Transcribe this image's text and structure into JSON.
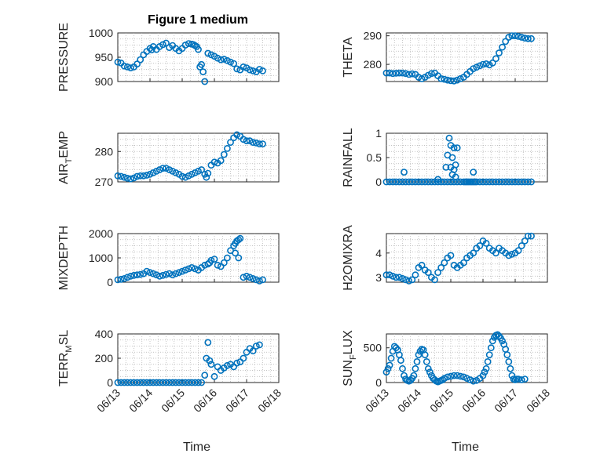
{
  "figure": {
    "title": "Figure 1 medium"
  },
  "chart_data": [
    {
      "type": "scatter",
      "title": "Figure 1 medium",
      "xlabel": "",
      "ylabel": "PRESSURE",
      "ylabel_parts": [
        "PRESSURE"
      ],
      "xlim": [
        0,
        5
      ],
      "ylim": [
        900,
        1000
      ],
      "yticks": [
        900,
        950,
        1000
      ],
      "xtick_labels": [],
      "grid": true,
      "marker": "circle",
      "color": "#0072BD",
      "x": [
        0.0,
        0.1,
        0.2,
        0.3,
        0.4,
        0.5,
        0.6,
        0.7,
        0.8,
        0.9,
        1.0,
        1.05,
        1.1,
        1.2,
        1.3,
        1.4,
        1.5,
        1.6,
        1.7,
        1.8,
        1.9,
        2.0,
        2.1,
        2.2,
        2.3,
        2.35,
        2.4,
        2.45,
        2.5,
        2.55,
        2.6,
        2.65,
        2.7,
        2.8,
        2.9,
        3.0,
        3.1,
        3.2,
        3.3,
        3.4,
        3.5,
        3.6,
        3.7,
        3.8,
        3.9,
        4.0,
        4.1,
        4.2,
        4.3,
        4.4,
        4.5
      ],
      "y": [
        940,
        938,
        932,
        930,
        928,
        930,
        936,
        945,
        955,
        962,
        968,
        965,
        972,
        966,
        972,
        976,
        979,
        970,
        974,
        968,
        963,
        968,
        975,
        978,
        977,
        976,
        974,
        972,
        966,
        930,
        935,
        920,
        900,
        958,
        955,
        952,
        948,
        945,
        946,
        943,
        940,
        937,
        926,
        924,
        930,
        928,
        924,
        922,
        920,
        925,
        922
      ]
    },
    {
      "type": "scatter",
      "title": "",
      "xlabel": "",
      "ylabel": "THETA",
      "ylabel_parts": [
        "THETA"
      ],
      "xlim": [
        0,
        5
      ],
      "ylim": [
        274,
        291
      ],
      "yticks": [
        280,
        290
      ],
      "xtick_labels": [],
      "grid": true,
      "marker": "circle",
      "color": "#0072BD",
      "x": [
        0.0,
        0.1,
        0.2,
        0.3,
        0.4,
        0.5,
        0.6,
        0.7,
        0.8,
        0.9,
        1.0,
        1.1,
        1.2,
        1.3,
        1.4,
        1.5,
        1.6,
        1.7,
        1.8,
        1.9,
        2.0,
        2.1,
        2.2,
        2.3,
        2.4,
        2.5,
        2.6,
        2.7,
        2.8,
        2.9,
        3.0,
        3.1,
        3.2,
        3.3,
        3.4,
        3.5,
        3.6,
        3.7,
        3.8,
        3.9,
        4.0,
        4.1,
        4.2,
        4.3,
        4.4,
        4.5
      ],
      "y": [
        277,
        277,
        276.8,
        276.9,
        277,
        277,
        276.8,
        276.5,
        276.7,
        276.5,
        275.5,
        275,
        275.5,
        276.2,
        276.8,
        277,
        276,
        275,
        274.8,
        274.5,
        274.3,
        274.2,
        274.5,
        275,
        275.5,
        276.5,
        277.5,
        278.5,
        279,
        279.5,
        280,
        280.2,
        279.8,
        280.5,
        282,
        284,
        286,
        288,
        289.5,
        290,
        290,
        289.8,
        289.5,
        289.2,
        289,
        289
      ]
    },
    {
      "type": "scatter",
      "title": "",
      "xlabel": "",
      "ylabel": "AIR_TEMP",
      "ylabel_parts": [
        "AIR",
        "T",
        "EMP"
      ],
      "xlim": [
        0,
        5
      ],
      "ylim": [
        270,
        286
      ],
      "yticks": [
        270,
        280
      ],
      "xtick_labels": [],
      "grid": true,
      "marker": "circle",
      "color": "#0072BD",
      "x": [
        0.0,
        0.1,
        0.2,
        0.3,
        0.4,
        0.5,
        0.6,
        0.7,
        0.8,
        0.9,
        1.0,
        1.1,
        1.2,
        1.3,
        1.4,
        1.5,
        1.6,
        1.7,
        1.8,
        1.9,
        2.0,
        2.1,
        2.2,
        2.3,
        2.4,
        2.5,
        2.6,
        2.7,
        2.75,
        2.8,
        2.9,
        3.0,
        3.1,
        3.2,
        3.3,
        3.4,
        3.5,
        3.6,
        3.7,
        3.8,
        3.9,
        4.0,
        4.1,
        4.2,
        4.3,
        4.4,
        4.5
      ],
      "y": [
        272,
        271.8,
        271.5,
        271.2,
        271,
        271.3,
        271.8,
        272,
        272,
        272.2,
        272.5,
        273,
        273.5,
        274,
        274.5,
        274.5,
        274,
        273.5,
        273,
        272.5,
        271.8,
        271.5,
        272,
        272.5,
        273,
        273.5,
        274,
        272.5,
        271.5,
        272.8,
        275.5,
        276.5,
        276.2,
        277,
        279,
        281,
        283,
        284.5,
        285.5,
        285,
        284,
        283.5,
        283.5,
        283,
        282.8,
        282.5,
        282.5
      ]
    },
    {
      "type": "scatter",
      "title": "",
      "xlabel": "",
      "ylabel": "RAINFALL",
      "ylabel_parts": [
        "RAINFALL"
      ],
      "xlim": [
        0,
        5
      ],
      "ylim": [
        0,
        1
      ],
      "yticks": [
        0,
        0.5,
        1
      ],
      "xtick_labels": [],
      "grid": true,
      "marker": "circle",
      "color": "#0072BD",
      "x": [
        0.0,
        0.1,
        0.2,
        0.3,
        0.4,
        0.5,
        0.6,
        0.7,
        0.8,
        0.9,
        1.0,
        1.1,
        1.2,
        1.3,
        1.4,
        1.5,
        1.6,
        1.7,
        1.8,
        1.9,
        2.0,
        2.1,
        2.2,
        2.3,
        2.4,
        2.45,
        2.5,
        2.55,
        2.6,
        2.65,
        2.7,
        2.75,
        2.8,
        2.9,
        3.0,
        3.1,
        3.2,
        3.3,
        3.4,
        3.5,
        3.6,
        3.7,
        3.8,
        3.9,
        4.0,
        4.1,
        4.2,
        4.3,
        4.4,
        4.5,
        0.55,
        1.6,
        1.85,
        1.9,
        1.95,
        2.0,
        2.0,
        2.05,
        2.05,
        2.1,
        2.1,
        2.15,
        2.15,
        2.2,
        2.7
      ],
      "y": [
        0,
        0,
        0,
        0,
        0,
        0,
        0,
        0,
        0,
        0,
        0,
        0,
        0,
        0,
        0,
        0,
        0,
        0,
        0,
        0,
        0,
        0,
        0,
        0,
        0,
        0,
        0,
        0,
        0,
        0,
        0,
        0,
        0,
        0,
        0,
        0,
        0,
        0,
        0,
        0,
        0,
        0,
        0,
        0,
        0,
        0,
        0,
        0,
        0,
        0,
        0.2,
        0.05,
        0.3,
        0.55,
        0.9,
        0.75,
        0.3,
        0.5,
        0.15,
        0.7,
        0.25,
        0.1,
        0.35,
        0.7,
        0.2
      ]
    },
    {
      "type": "scatter",
      "title": "",
      "xlabel": "",
      "ylabel": "MIXDEPTH",
      "ylabel_parts": [
        "MIXDEPTH"
      ],
      "xlim": [
        0,
        5
      ],
      "ylim": [
        0,
        2000
      ],
      "yticks": [
        0,
        1000,
        2000
      ],
      "xtick_labels": [],
      "grid": true,
      "marker": "circle",
      "color": "#0072BD",
      "x": [
        0.0,
        0.1,
        0.2,
        0.3,
        0.4,
        0.5,
        0.6,
        0.7,
        0.8,
        0.9,
        1.0,
        1.1,
        1.2,
        1.3,
        1.4,
        1.5,
        1.6,
        1.7,
        1.8,
        1.9,
        2.0,
        2.1,
        2.2,
        2.3,
        2.4,
        2.5,
        2.6,
        2.7,
        2.8,
        2.85,
        2.9,
        3.0,
        3.1,
        3.2,
        3.3,
        3.4,
        3.5,
        3.6,
        3.65,
        3.7,
        3.75,
        3.8,
        3.9,
        4.0,
        4.1,
        4.2,
        4.3,
        4.4,
        4.5,
        3.65,
        3.75
      ],
      "y": [
        100,
        120,
        150,
        200,
        250,
        280,
        300,
        320,
        350,
        450,
        400,
        350,
        300,
        250,
        280,
        320,
        350,
        300,
        350,
        400,
        450,
        500,
        550,
        600,
        550,
        500,
        600,
        700,
        750,
        800,
        900,
        950,
        700,
        650,
        800,
        1000,
        1300,
        1500,
        1600,
        1700,
        1750,
        1800,
        200,
        250,
        200,
        150,
        100,
        50,
        100,
        1200,
        1000
      ]
    },
    {
      "type": "scatter",
      "title": "",
      "xlabel": "",
      "ylabel": "H2OMIXRA",
      "ylabel_parts": [
        "H2OMIXRA"
      ],
      "xlim": [
        0,
        5
      ],
      "ylim": [
        2.8,
        4.8
      ],
      "yticks": [
        3,
        4
      ],
      "xtick_labels": [],
      "grid": true,
      "marker": "circle",
      "color": "#0072BD",
      "x": [
        0.0,
        0.1,
        0.2,
        0.3,
        0.4,
        0.5,
        0.6,
        0.7,
        0.8,
        0.9,
        1.0,
        1.1,
        1.2,
        1.3,
        1.4,
        1.5,
        1.6,
        1.7,
        1.8,
        1.9,
        2.0,
        2.1,
        2.2,
        2.3,
        2.4,
        2.5,
        2.6,
        2.7,
        2.8,
        2.9,
        3.0,
        3.1,
        3.2,
        3.3,
        3.4,
        3.5,
        3.6,
        3.7,
        3.8,
        3.9,
        4.0,
        4.1,
        4.2,
        4.3,
        4.4,
        4.5
      ],
      "y": [
        3.1,
        3.1,
        3.05,
        3.0,
        3.0,
        2.95,
        2.9,
        2.85,
        2.9,
        3.1,
        3.4,
        3.5,
        3.3,
        3.2,
        3.0,
        2.9,
        3.2,
        3.4,
        3.6,
        3.8,
        3.9,
        3.5,
        3.4,
        3.5,
        3.6,
        3.8,
        3.9,
        4.0,
        4.2,
        4.3,
        4.5,
        4.4,
        4.2,
        4.1,
        4.0,
        4.2,
        4.1,
        4.0,
        3.9,
        3.95,
        4.0,
        4.1,
        4.3,
        4.5,
        4.7,
        4.7
      ]
    },
    {
      "type": "scatter",
      "title": "",
      "xlabel": "Time",
      "ylabel": "TERR_MSL",
      "ylabel_parts": [
        "TERR",
        "M",
        "SL"
      ],
      "xlim": [
        0,
        5
      ],
      "ylim": [
        0,
        400
      ],
      "yticks": [
        0,
        200,
        400
      ],
      "xtick_labels": [
        "06/13",
        "06/14",
        "06/15",
        "06/16",
        "06/17",
        "06/18"
      ],
      "grid": true,
      "marker": "circle",
      "color": "#0072BD",
      "x": [
        0.0,
        0.1,
        0.2,
        0.3,
        0.4,
        0.5,
        0.6,
        0.7,
        0.8,
        0.9,
        1.0,
        1.1,
        1.2,
        1.3,
        1.4,
        1.5,
        1.6,
        1.7,
        1.8,
        1.9,
        2.0,
        2.1,
        2.2,
        2.3,
        2.4,
        2.5,
        2.6,
        2.7,
        2.75,
        2.8,
        2.85,
        2.9,
        3.0,
        3.1,
        3.2,
        3.3,
        3.4,
        3.5,
        3.6,
        3.7,
        3.8,
        3.9,
        4.0,
        4.1,
        4.2,
        4.3,
        4.4
      ],
      "y": [
        0,
        0,
        0,
        0,
        0,
        0,
        0,
        0,
        0,
        0,
        0,
        0,
        0,
        0,
        0,
        0,
        0,
        0,
        0,
        0,
        0,
        0,
        0,
        0,
        0,
        0,
        0,
        60,
        200,
        330,
        180,
        150,
        50,
        130,
        100,
        120,
        140,
        150,
        130,
        160,
        170,
        200,
        250,
        280,
        260,
        300,
        310
      ]
    },
    {
      "type": "scatter",
      "title": "",
      "xlabel": "Time",
      "ylabel": "SUN_FLUX",
      "ylabel_parts": [
        "SUN",
        "F",
        "LUX"
      ],
      "xlim": [
        0,
        5
      ],
      "ylim": [
        0,
        700
      ],
      "yticks": [
        0,
        500
      ],
      "xtick_labels": [
        "06/13",
        "06/14",
        "06/15",
        "06/16",
        "06/17",
        "06/18"
      ],
      "grid": true,
      "marker": "circle",
      "color": "#0072BD",
      "x": [
        0.0,
        0.05,
        0.1,
        0.15,
        0.2,
        0.25,
        0.3,
        0.35,
        0.4,
        0.45,
        0.5,
        0.55,
        0.6,
        0.65,
        0.7,
        0.75,
        0.8,
        0.85,
        0.9,
        0.95,
        1.0,
        1.05,
        1.1,
        1.15,
        1.2,
        1.25,
        1.3,
        1.35,
        1.4,
        1.45,
        1.5,
        1.55,
        1.6,
        1.65,
        1.7,
        1.75,
        1.8,
        1.9,
        2.0,
        2.1,
        2.2,
        2.3,
        2.4,
        2.5,
        2.6,
        2.7,
        2.8,
        2.9,
        3.0,
        3.05,
        3.1,
        3.15,
        3.2,
        3.25,
        3.3,
        3.35,
        3.4,
        3.45,
        3.5,
        3.55,
        3.6,
        3.65,
        3.7,
        3.75,
        3.8,
        3.85,
        3.9,
        3.95,
        4.0,
        4.05,
        4.1,
        4.2,
        4.3
      ],
      "y": [
        150,
        200,
        250,
        350,
        450,
        520,
        500,
        470,
        400,
        320,
        200,
        100,
        50,
        30,
        20,
        30,
        60,
        100,
        200,
        300,
        400,
        450,
        480,
        470,
        400,
        300,
        200,
        150,
        100,
        60,
        40,
        20,
        10,
        20,
        30,
        40,
        60,
        80,
        90,
        100,
        100,
        90,
        80,
        60,
        40,
        20,
        30,
        60,
        100,
        150,
        200,
        300,
        400,
        500,
        600,
        650,
        680,
        690,
        670,
        640,
        600,
        550,
        480,
        400,
        300,
        200,
        100,
        50,
        40,
        50,
        50,
        40,
        50
      ]
    }
  ]
}
